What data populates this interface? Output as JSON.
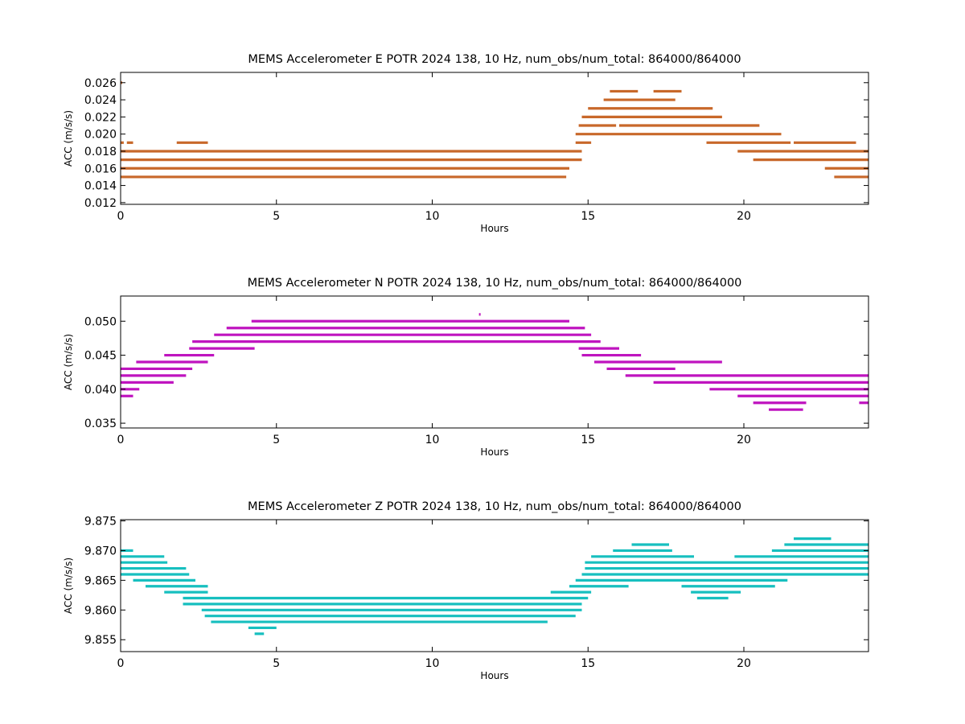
{
  "chart_data": [
    {
      "type": "scatter",
      "title": "MEMS Accelerometer E POTR 2024 138, 10 Hz, num_obs/num_total: 864000/864000",
      "xlabel": "Hours",
      "ylabel": "ACC (m/s/s)",
      "xlim": [
        0,
        24
      ],
      "ylim": [
        0.0118,
        0.0272
      ],
      "xticks": [
        0,
        5,
        10,
        15,
        20
      ],
      "xtick_labels": [
        "0",
        "5",
        "10",
        "15",
        "20"
      ],
      "yticks": [
        0.012,
        0.014,
        0.016,
        0.018,
        0.02,
        0.022,
        0.024,
        0.026
      ],
      "ytick_labels": [
        "0.012",
        "0.014",
        "0.016",
        "0.018",
        "0.020",
        "0.022",
        "0.024",
        "0.026"
      ],
      "grid": false,
      "color": "#c8682a",
      "levels": [
        {
          "y": 0.026,
          "segments": [
            [
              0.0,
              0.0
            ]
          ]
        },
        {
          "y": 0.025,
          "segments": [
            [
              15.7,
              16.6
            ],
            [
              17.1,
              18.0
            ]
          ]
        },
        {
          "y": 0.024,
          "segments": [
            [
              15.5,
              17.8
            ]
          ]
        },
        {
          "y": 0.023,
          "segments": [
            [
              15.0,
              19.0
            ]
          ]
        },
        {
          "y": 0.022,
          "segments": [
            [
              14.8,
              19.3
            ]
          ]
        },
        {
          "y": 0.021,
          "segments": [
            [
              14.7,
              15.9
            ],
            [
              16.0,
              20.5
            ]
          ]
        },
        {
          "y": 0.02,
          "segments": [
            [
              14.6,
              21.2
            ]
          ]
        },
        {
          "y": 0.019,
          "segments": [
            [
              0.0,
              0.1
            ],
            [
              0.2,
              0.4
            ],
            [
              1.8,
              2.8
            ],
            [
              14.6,
              15.1
            ],
            [
              18.8,
              21.5
            ],
            [
              21.6,
              23.6
            ]
          ]
        },
        {
          "y": 0.018,
          "segments": [
            [
              0.0,
              14.8
            ],
            [
              19.8,
              24.0
            ]
          ]
        },
        {
          "y": 0.017,
          "segments": [
            [
              0.0,
              14.8
            ],
            [
              20.3,
              24.0
            ]
          ]
        },
        {
          "y": 0.016,
          "segments": [
            [
              0.0,
              14.4
            ],
            [
              22.6,
              24.0
            ]
          ]
        },
        {
          "y": 0.015,
          "segments": [
            [
              0.0,
              14.3
            ],
            [
              22.9,
              24.0
            ]
          ]
        }
      ]
    },
    {
      "type": "scatter",
      "title": "MEMS Accelerometer N POTR 2024 138, 10 Hz, num_obs/num_total: 864000/864000",
      "xlabel": "Hours",
      "ylabel": "ACC (m/s/s)",
      "xlim": [
        0,
        24
      ],
      "ylim": [
        0.0343,
        0.0537
      ],
      "xticks": [
        0,
        5,
        10,
        15,
        20
      ],
      "xtick_labels": [
        "0",
        "5",
        "10",
        "15",
        "20"
      ],
      "yticks": [
        0.035,
        0.04,
        0.045,
        0.05
      ],
      "ytick_labels": [
        "0.035",
        "0.040",
        "0.045",
        "0.050"
      ],
      "grid": false,
      "color": "#bf14bf",
      "levels": [
        {
          "y": 0.051,
          "segments": [
            [
              11.5,
              11.5
            ]
          ]
        },
        {
          "y": 0.05,
          "segments": [
            [
              4.2,
              14.4
            ]
          ]
        },
        {
          "y": 0.049,
          "segments": [
            [
              3.4,
              14.9
            ]
          ]
        },
        {
          "y": 0.048,
          "segments": [
            [
              3.0,
              15.1
            ]
          ]
        },
        {
          "y": 0.047,
          "segments": [
            [
              2.3,
              15.4
            ]
          ]
        },
        {
          "y": 0.046,
          "segments": [
            [
              2.2,
              4.3
            ],
            [
              14.7,
              16.0
            ]
          ]
        },
        {
          "y": 0.045,
          "segments": [
            [
              1.4,
              3.0
            ],
            [
              14.8,
              16.7
            ]
          ]
        },
        {
          "y": 0.044,
          "segments": [
            [
              0.5,
              2.8
            ],
            [
              15.2,
              19.3
            ]
          ]
        },
        {
          "y": 0.043,
          "segments": [
            [
              0.0,
              2.3
            ],
            [
              15.6,
              17.8
            ]
          ]
        },
        {
          "y": 0.042,
          "segments": [
            [
              0.0,
              2.1
            ],
            [
              16.2,
              24.0
            ]
          ]
        },
        {
          "y": 0.041,
          "segments": [
            [
              0.0,
              1.7
            ],
            [
              17.1,
              24.0
            ]
          ]
        },
        {
          "y": 0.04,
          "segments": [
            [
              0.0,
              0.6
            ],
            [
              18.9,
              24.0
            ]
          ]
        },
        {
          "y": 0.039,
          "segments": [
            [
              0.0,
              0.4
            ],
            [
              19.8,
              24.0
            ]
          ]
        },
        {
          "y": 0.038,
          "segments": [
            [
              20.3,
              22.0
            ],
            [
              23.7,
              24.0
            ]
          ]
        },
        {
          "y": 0.037,
          "segments": [
            [
              20.8,
              21.9
            ]
          ]
        }
      ]
    },
    {
      "type": "scatter",
      "title": "MEMS Accelerometer Z POTR 2024 138, 10 Hz, num_obs/num_total: 864000/864000",
      "xlabel": "Hours",
      "ylabel": "ACC (m/s/s)",
      "xlim": [
        0,
        24
      ],
      "ylim": [
        9.853,
        9.8752
      ],
      "xticks": [
        0,
        5,
        10,
        15,
        20
      ],
      "xtick_labels": [
        "0",
        "5",
        "10",
        "15",
        "20"
      ],
      "yticks": [
        9.855,
        9.86,
        9.865,
        9.87,
        9.875
      ],
      "ytick_labels": [
        "9.855",
        "9.860",
        "9.865",
        "9.870",
        "9.875"
      ],
      "grid": false,
      "color": "#17bfbf",
      "levels": [
        {
          "y": 9.872,
          "segments": [
            [
              21.6,
              22.8
            ]
          ]
        },
        {
          "y": 9.871,
          "segments": [
            [
              16.4,
              17.6
            ],
            [
              21.3,
              24.0
            ]
          ]
        },
        {
          "y": 9.87,
          "segments": [
            [
              0.0,
              0.4
            ],
            [
              15.8,
              17.7
            ],
            [
              20.9,
              24.0
            ]
          ]
        },
        {
          "y": 9.869,
          "segments": [
            [
              0.0,
              1.4
            ],
            [
              15.1,
              18.4
            ],
            [
              19.7,
              24.0
            ]
          ]
        },
        {
          "y": 9.868,
          "segments": [
            [
              0.0,
              1.5
            ],
            [
              14.9,
              24.0
            ]
          ]
        },
        {
          "y": 9.867,
          "segments": [
            [
              0.0,
              2.1
            ],
            [
              14.9,
              24.0
            ]
          ]
        },
        {
          "y": 9.866,
          "segments": [
            [
              0.0,
              2.2
            ],
            [
              14.8,
              24.0
            ]
          ]
        },
        {
          "y": 9.865,
          "segments": [
            [
              0.4,
              2.4
            ],
            [
              14.6,
              21.4
            ]
          ]
        },
        {
          "y": 9.864,
          "segments": [
            [
              0.8,
              2.8
            ],
            [
              14.4,
              16.3
            ],
            [
              18.0,
              21.0
            ]
          ]
        },
        {
          "y": 9.863,
          "segments": [
            [
              1.4,
              2.8
            ],
            [
              13.8,
              15.1
            ],
            [
              18.3,
              19.9
            ]
          ]
        },
        {
          "y": 9.862,
          "segments": [
            [
              2.0,
              15.0
            ],
            [
              18.5,
              19.5
            ]
          ]
        },
        {
          "y": 9.861,
          "segments": [
            [
              2.0,
              14.8
            ]
          ]
        },
        {
          "y": 9.86,
          "segments": [
            [
              2.6,
              14.8
            ]
          ]
        },
        {
          "y": 9.859,
          "segments": [
            [
              2.7,
              14.6
            ]
          ]
        },
        {
          "y": 9.858,
          "segments": [
            [
              2.9,
              13.7
            ]
          ]
        },
        {
          "y": 9.857,
          "segments": [
            [
              4.1,
              5.0
            ]
          ]
        },
        {
          "y": 9.856,
          "segments": [
            [
              4.3,
              4.6
            ]
          ]
        }
      ]
    }
  ]
}
